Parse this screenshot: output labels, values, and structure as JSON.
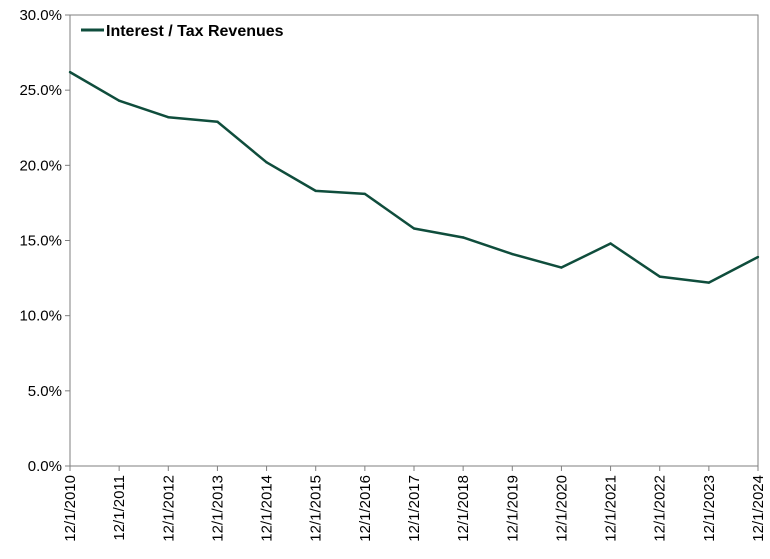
{
  "chart_data": {
    "type": "line",
    "title": "",
    "xlabel": "",
    "ylabel": "",
    "categories": [
      "12/1/2010",
      "12/1/2011",
      "12/1/2012",
      "12/1/2013",
      "12/1/2014",
      "12/1/2015",
      "12/1/2016",
      "12/1/2017",
      "12/1/2018",
      "12/1/2019",
      "12/1/2020",
      "12/1/2021",
      "12/1/2022",
      "12/1/2023",
      "12/1/2024"
    ],
    "series": [
      {
        "name": "Interest / Tax Revenues",
        "color": "#0f4d3c",
        "values": [
          26.2,
          24.3,
          23.2,
          22.9,
          20.2,
          18.3,
          18.1,
          15.8,
          15.2,
          14.1,
          13.2,
          14.8,
          12.6,
          12.2,
          13.9
        ]
      }
    ],
    "ylim": [
      0,
      30
    ],
    "yticks": [
      0,
      5,
      10,
      15,
      20,
      25,
      30
    ],
    "ytick_labels": [
      "0.0%",
      "5.0%",
      "10.0%",
      "15.0%",
      "20.0%",
      "25.0%",
      "30.0%"
    ],
    "legend": {
      "position": "top-left",
      "label": "Interest / Tax Revenues"
    },
    "grid": false
  }
}
